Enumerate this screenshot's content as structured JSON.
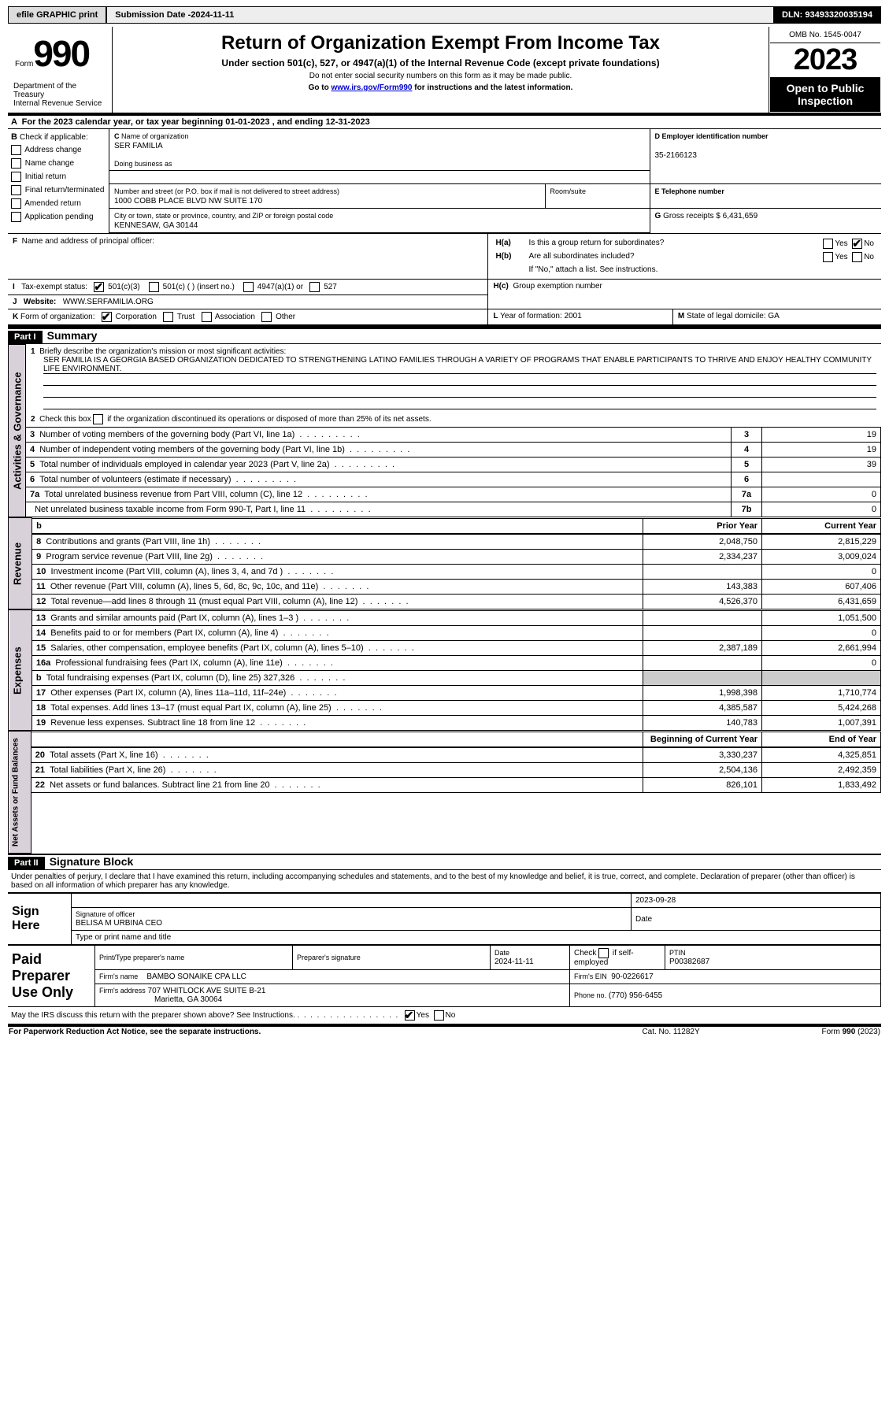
{
  "topbar": {
    "efile": "efile GRAPHIC print",
    "submission_label": "Submission Date - ",
    "submission_date": "2024-11-11",
    "dln_label": "DLN: ",
    "dln": "93493320035194"
  },
  "header": {
    "form_label": "Form",
    "form_num": "990",
    "dept1": "Department of the Treasury",
    "dept2": "Internal Revenue Service",
    "title": "Return of Organization Exempt From Income Tax",
    "subtitle": "Under section 501(c), 527, or 4947(a)(1) of the Internal Revenue Code (except private foundations)",
    "note1": "Do not enter social security numbers on this form as it may be made public.",
    "note2": "Go to ",
    "note2_link": "www.irs.gov/Form990",
    "note2_after": " for instructions and the latest information.",
    "omb": "OMB No. 1545-0047",
    "year": "2023",
    "open_public": "Open to Public Inspection"
  },
  "A": {
    "text": "For the 2023 calendar year, or tax year beginning ",
    "begin": "01-01-2023",
    "mid": " , and ending ",
    "end": "12-31-2023"
  },
  "B": {
    "label": "Check if applicable:",
    "opts": [
      "Address change",
      "Name change",
      "Initial return",
      "Final return/terminated",
      "Amended return",
      "Application pending"
    ]
  },
  "C": {
    "name_label": "Name of organization",
    "name": "SER FAMILIA",
    "dba_label": "Doing business as",
    "street_label": "Number and street (or P.O. box if mail is not delivered to street address)",
    "street": "1000 COBB PLACE BLVD NW SUITE 170",
    "room_label": "Room/suite",
    "city_label": "City or town, state or province, country, and ZIP or foreign postal code",
    "city": "KENNESAW, GA  30144"
  },
  "D": {
    "label": "Employer identification number",
    "value": "35-2166123"
  },
  "E": {
    "label": "Telephone number"
  },
  "G": {
    "label": "Gross receipts $",
    "value": "6,431,659"
  },
  "F": {
    "label": "Name and address of principal officer:"
  },
  "H": {
    "a": "Is this a group return for subordinates?",
    "b": "Are all subordinates included?",
    "b_note": "If \"No,\" attach a list. See instructions.",
    "c": "Group exemption number",
    "yes": "Yes",
    "no": "No"
  },
  "I": {
    "label": "Tax-exempt status:",
    "opts": [
      "501(c)(3)",
      "501(c) (  ) (insert no.)",
      "4947(a)(1) or",
      "527"
    ]
  },
  "J": {
    "label": "Website:",
    "value": "WWW.SERFAMILIA.ORG"
  },
  "K": {
    "label": "Form of organization:",
    "opts": [
      "Corporation",
      "Trust",
      "Association",
      "Other"
    ]
  },
  "L": {
    "label": "Year of formation:",
    "value": "2001"
  },
  "M": {
    "label": "State of legal domicile:",
    "value": "GA"
  },
  "part1": {
    "tag": "Part I",
    "title": "Summary"
  },
  "summary": {
    "l1_label": "Briefly describe the organization's mission or most significant activities:",
    "l1_text": "SER FAMILIA IS A GEORGIA BASED ORGANIZATION DEDICATED TO STRENGTHENING LATINO FAMILIES THROUGH A VARIETY OF PROGRAMS THAT ENABLE PARTICIPANTS TO THRIVE AND ENJOY HEALTHY COMMUNITY LIFE ENVIRONMENT.",
    "l2": "Check this box      if the organization discontinued its operations or disposed of more than 25% of its net assets.",
    "rows_ag": [
      {
        "n": "3",
        "t": "Number of voting members of the governing body (Part VI, line 1a)",
        "box": "3",
        "v": "19"
      },
      {
        "n": "4",
        "t": "Number of independent voting members of the governing body (Part VI, line 1b)",
        "box": "4",
        "v": "19"
      },
      {
        "n": "5",
        "t": "Total number of individuals employed in calendar year 2023 (Part V, line 2a)",
        "box": "5",
        "v": "39"
      },
      {
        "n": "6",
        "t": "Total number of volunteers (estimate if necessary)",
        "box": "6",
        "v": ""
      },
      {
        "n": "7a",
        "t": "Total unrelated business revenue from Part VIII, column (C), line 12",
        "box": "7a",
        "v": "0"
      },
      {
        "n": "",
        "t": "Net unrelated business taxable income from Form 990-T, Part I, line 11",
        "box": "7b",
        "v": "0"
      }
    ],
    "col_prior": "Prior Year",
    "col_current": "Current Year",
    "revenue": [
      {
        "n": "8",
        "t": "Contributions and grants (Part VIII, line 1h)",
        "p": "2,048,750",
        "c": "2,815,229"
      },
      {
        "n": "9",
        "t": "Program service revenue (Part VIII, line 2g)",
        "p": "2,334,237",
        "c": "3,009,024"
      },
      {
        "n": "10",
        "t": "Investment income (Part VIII, column (A), lines 3, 4, and 7d )",
        "p": "",
        "c": "0"
      },
      {
        "n": "11",
        "t": "Other revenue (Part VIII, column (A), lines 5, 6d, 8c, 9c, 10c, and 11e)",
        "p": "143,383",
        "c": "607,406"
      },
      {
        "n": "12",
        "t": "Total revenue—add lines 8 through 11 (must equal Part VIII, column (A), line 12)",
        "p": "4,526,370",
        "c": "6,431,659"
      }
    ],
    "expenses": [
      {
        "n": "13",
        "t": "Grants and similar amounts paid (Part IX, column (A), lines 1–3 )",
        "p": "",
        "c": "1,051,500"
      },
      {
        "n": "14",
        "t": "Benefits paid to or for members (Part IX, column (A), line 4)",
        "p": "",
        "c": "0"
      },
      {
        "n": "15",
        "t": "Salaries, other compensation, employee benefits (Part IX, column (A), lines 5–10)",
        "p": "2,387,189",
        "c": "2,661,994"
      },
      {
        "n": "16a",
        "t": "Professional fundraising fees (Part IX, column (A), line 11e)",
        "p": "",
        "c": "0"
      },
      {
        "n": "b",
        "t": "Total fundraising expenses (Part IX, column (D), line 25) 327,326",
        "p": "GREY",
        "c": "GREY"
      },
      {
        "n": "17",
        "t": "Other expenses (Part IX, column (A), lines 11a–11d, 11f–24e)",
        "p": "1,998,398",
        "c": "1,710,774"
      },
      {
        "n": "18",
        "t": "Total expenses. Add lines 13–17 (must equal Part IX, column (A), line 25)",
        "p": "4,385,587",
        "c": "5,424,268"
      },
      {
        "n": "19",
        "t": "Revenue less expenses. Subtract line 18 from line 12",
        "p": "140,783",
        "c": "1,007,391"
      }
    ],
    "col_begin": "Beginning of Current Year",
    "col_end": "End of Year",
    "netassets": [
      {
        "n": "20",
        "t": "Total assets (Part X, line 16)",
        "p": "3,330,237",
        "c": "4,325,851"
      },
      {
        "n": "21",
        "t": "Total liabilities (Part X, line 26)",
        "p": "2,504,136",
        "c": "2,492,359"
      },
      {
        "n": "22",
        "t": "Net assets or fund balances. Subtract line 21 from line 20",
        "p": "826,101",
        "c": "1,833,492"
      }
    ],
    "vlabels": {
      "ag": "Activities & Governance",
      "rev": "Revenue",
      "exp": "Expenses",
      "na": "Net Assets or Fund Balances"
    }
  },
  "part2": {
    "tag": "Part II",
    "title": "Signature Block"
  },
  "sig": {
    "perjury": "Under penalties of perjury, I declare that I have examined this return, including accompanying schedules and statements, and to the best of my knowledge and belief, it is true, correct, and complete. Declaration of preparer (other than officer) is based on all information of which preparer has any knowledge.",
    "sign_here": "Sign Here",
    "sig_officer": "Signature of officer",
    "officer_name": "BELISA M URBINA CEO",
    "type_name": "Type or print name and title",
    "date": "2023-09-28",
    "date_label": "Date",
    "paid": "Paid Preparer Use Only",
    "prep_name_label": "Print/Type preparer's name",
    "prep_sig_label": "Preparer's signature",
    "prep_date": "2024-11-11",
    "check_self": "Check        if self-employed",
    "ptin_label": "PTIN",
    "ptin": "P00382687",
    "firm_name_label": "Firm's name",
    "firm_name": "BAMBO SONAIKE CPA LLC",
    "firm_ein_label": "Firm's EIN",
    "firm_ein": "90-0226617",
    "firm_addr_label": "Firm's address",
    "firm_addr1": "707 WHITLOCK AVE SUITE B-21",
    "firm_addr2": "Marietta, GA  30064",
    "phone_label": "Phone no.",
    "phone": "(770) 956-6455",
    "discuss": "May the IRS discuss this return with the preparer shown above? See Instructions. "
  },
  "footer": {
    "pra": "For Paperwork Reduction Act Notice, see the separate instructions.",
    "cat": "Cat. No. 11282Y",
    "form": "Form 990 (2023)"
  }
}
